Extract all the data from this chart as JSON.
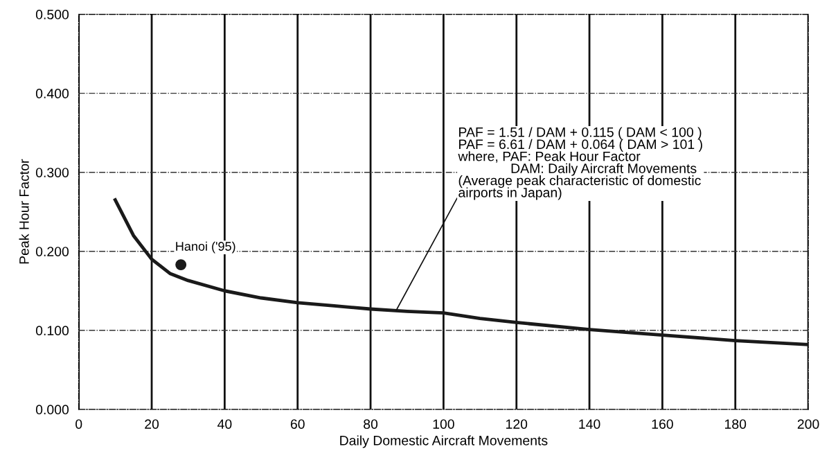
{
  "chart_data": {
    "type": "line",
    "xlabel": "Daily Domestic Aircraft Movements",
    "ylabel": "Peak Hour Factor",
    "xlim": [
      0,
      200
    ],
    "ylim": [
      0,
      0.5
    ],
    "xticks": [
      0,
      20,
      40,
      60,
      80,
      100,
      120,
      140,
      160,
      180,
      200
    ],
    "yticks": [
      {
        "value": 0,
        "label": "0.000"
      },
      {
        "value": 0.1,
        "label": "0.100"
      },
      {
        "value": 0.2,
        "label": "0.200"
      },
      {
        "value": 0.3,
        "label": "0.300"
      },
      {
        "value": 0.4,
        "label": "0.400"
      },
      {
        "value": 0.5,
        "label": "0.500"
      }
    ],
    "grid": true,
    "legend": false,
    "series": [
      {
        "color": "#1a1a1a",
        "marker": "none",
        "line_style": "solid",
        "x": [
          10,
          15,
          20,
          25,
          30,
          40,
          50,
          60,
          70,
          80,
          90,
          100,
          110,
          120,
          140,
          160,
          180,
          200
        ],
        "values": [
          0.265,
          0.22,
          0.19,
          0.172,
          0.163,
          0.15,
          0.141,
          0.135,
          0.131,
          0.127,
          0.124,
          0.122,
          0.115,
          0.11,
          0.101,
          0.094,
          0.087,
          0.082
        ]
      },
      {
        "type": "scatter",
        "name": "Hanoi ('95)",
        "color": "#1a1a1a",
        "marker": "circle",
        "x": [
          28
        ],
        "values": [
          0.183
        ]
      }
    ],
    "annotations": [
      {
        "text": "PAF = 1.51 / DAM + 0.115 ( DAM < 100 )\nPAF = 6.61 / DAM + 0.064 ( DAM > 101 )\nwhere, PAF: Peak Hour Factor\n              DAM: Daily Aircraft Movements\n(Average peak characteristic of domestic\nairports in Japan)",
        "x": 87,
        "y": 0.125
      }
    ]
  }
}
